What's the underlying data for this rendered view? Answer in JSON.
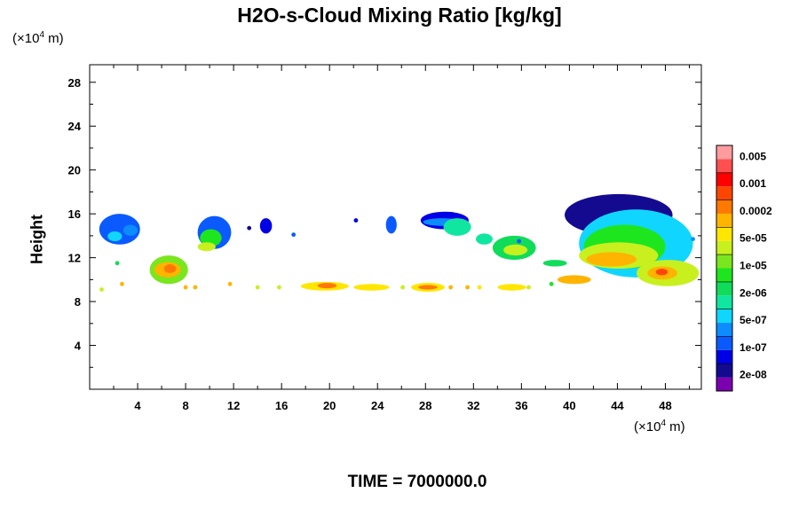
{
  "chart_data": {
    "type": "heatmap",
    "title": "H2O-s-Cloud Mixing Ratio [kg/kg]",
    "ylabel": "Height",
    "x_unit_prefix": "(×10",
    "x_unit_exp": "4",
    "x_unit_suffix": " m)",
    "y_unit_prefix": "(×10",
    "y_unit_exp": "4",
    "y_unit_suffix": " m)",
    "time_label": "TIME = 7000000.0",
    "xlim": [
      0,
      51
    ],
    "ylim": [
      0,
      29.6
    ],
    "xticks": [
      4,
      8,
      12,
      16,
      20,
      24,
      28,
      32,
      36,
      40,
      44,
      48
    ],
    "yticks": [
      4,
      8,
      12,
      16,
      20,
      24,
      28
    ],
    "grid": false,
    "colorbar": {
      "placement": "right",
      "colors": [
        "#7a00b0",
        "#140a90",
        "#0000e6",
        "#0a5aff",
        "#0c8cff",
        "#10d6ff",
        "#10e6a0",
        "#10dc5a",
        "#1ee61e",
        "#7ae61e",
        "#c8f01e",
        "#ffe600",
        "#ffb400",
        "#ff7800",
        "#ff4600",
        "#ff0000",
        "#ff5050",
        "#ff9ca0"
      ],
      "labels": [
        "2e-08",
        "1e-07",
        "5e-07",
        "2e-06",
        "1e-05",
        "5e-05",
        "0.0002",
        "0.001",
        "0.005"
      ]
    },
    "regions": [
      {
        "x": [
          0.8,
          4.2
        ],
        "y": [
          13.2,
          16.0
        ],
        "level": 3
      },
      {
        "x": [
          1.5,
          2.7
        ],
        "y": [
          13.5,
          14.4
        ],
        "level": 5
      },
      {
        "x": [
          2.8,
          4.0
        ],
        "y": [
          14.0,
          15.0
        ],
        "level": 4
      },
      {
        "x": [
          9.0,
          11.8
        ],
        "y": [
          12.8,
          15.8
        ],
        "level": 3
      },
      {
        "x": [
          9.2,
          11.0
        ],
        "y": [
          13.0,
          14.6
        ],
        "level": 8
      },
      {
        "x": [
          9.0,
          10.5
        ],
        "y": [
          12.6,
          13.4
        ],
        "level": 10
      },
      {
        "x": [
          14.2,
          15.2
        ],
        "y": [
          14.2,
          15.6
        ],
        "level": 2
      },
      {
        "x": [
          24.7,
          25.6
        ],
        "y": [
          14.2,
          15.8
        ],
        "level": 3
      },
      {
        "x": [
          27.6,
          31.6
        ],
        "y": [
          14.6,
          16.2
        ],
        "level": 2
      },
      {
        "x": [
          27.8,
          31.0
        ],
        "y": [
          14.9,
          15.6
        ],
        "level": 4
      },
      {
        "x": [
          29.5,
          31.8
        ],
        "y": [
          14.0,
          15.6
        ],
        "level": 6
      },
      {
        "x": [
          32.2,
          33.6
        ],
        "y": [
          13.2,
          14.2
        ],
        "level": 6
      },
      {
        "x": [
          33.6,
          37.2
        ],
        "y": [
          11.8,
          14.0
        ],
        "level": 7
      },
      {
        "x": [
          34.5,
          36.5
        ],
        "y": [
          12.2,
          13.2
        ],
        "level": 10
      },
      {
        "x": [
          39.6,
          48.6
        ],
        "y": [
          14.0,
          17.8
        ],
        "level": 1
      },
      {
        "x": [
          40.8,
          50.3
        ],
        "y": [
          10.2,
          16.4
        ],
        "level": 5
      },
      {
        "x": [
          41.2,
          48.0
        ],
        "y": [
          11.0,
          15.0
        ],
        "level": 8
      },
      {
        "x": [
          40.8,
          47.4
        ],
        "y": [
          11.0,
          13.4
        ],
        "level": 10
      },
      {
        "x": [
          41.4,
          45.6
        ],
        "y": [
          11.2,
          12.5
        ],
        "level": 12
      },
      {
        "x": [
          45.6,
          50.8
        ],
        "y": [
          9.4,
          11.8
        ],
        "level": 10
      },
      {
        "x": [
          46.5,
          49.0
        ],
        "y": [
          10.0,
          11.2
        ],
        "level": 12
      },
      {
        "x": [
          47.2,
          48.2
        ],
        "y": [
          10.4,
          11.0
        ],
        "level": 14
      },
      {
        "x": [
          39.0,
          41.8
        ],
        "y": [
          9.6,
          10.4
        ],
        "level": 12
      },
      {
        "x": [
          5.0,
          8.2
        ],
        "y": [
          9.6,
          12.2
        ],
        "level": 9
      },
      {
        "x": [
          5.4,
          7.6
        ],
        "y": [
          10.2,
          11.6
        ],
        "level": 12
      },
      {
        "x": [
          6.2,
          7.2
        ],
        "y": [
          10.6,
          11.4
        ],
        "level": 13
      },
      {
        "x": [
          17.6,
          21.6
        ],
        "y": [
          9.0,
          9.8
        ],
        "level": 11
      },
      {
        "x": [
          19.0,
          20.6
        ],
        "y": [
          9.2,
          9.7
        ],
        "level": 13
      },
      {
        "x": [
          22.0,
          25.0
        ],
        "y": [
          9.0,
          9.6
        ],
        "level": 11
      },
      {
        "x": [
          26.8,
          29.6
        ],
        "y": [
          8.9,
          9.7
        ],
        "level": 11
      },
      {
        "x": [
          27.4,
          29.0
        ],
        "y": [
          9.1,
          9.5
        ],
        "level": 13
      },
      {
        "x": [
          34.0,
          36.4
        ],
        "y": [
          9.0,
          9.6
        ],
        "level": 11
      },
      {
        "x": [
          37.8,
          39.8
        ],
        "y": [
          11.2,
          11.8
        ],
        "level": 7
      }
    ],
    "specks": [
      {
        "x": 1.0,
        "y": 9.1,
        "level": 10
      },
      {
        "x": 2.3,
        "y": 11.5,
        "level": 7
      },
      {
        "x": 2.7,
        "y": 9.6,
        "level": 12
      },
      {
        "x": 8.0,
        "y": 9.3,
        "level": 12
      },
      {
        "x": 8.8,
        "y": 9.3,
        "level": 12
      },
      {
        "x": 11.7,
        "y": 9.6,
        "level": 12
      },
      {
        "x": 14.0,
        "y": 9.3,
        "level": 10
      },
      {
        "x": 15.8,
        "y": 9.3,
        "level": 10
      },
      {
        "x": 13.3,
        "y": 14.7,
        "level": 1
      },
      {
        "x": 17.0,
        "y": 14.1,
        "level": 3
      },
      {
        "x": 22.2,
        "y": 15.4,
        "level": 2
      },
      {
        "x": 26.1,
        "y": 9.3,
        "level": 10
      },
      {
        "x": 30.1,
        "y": 9.3,
        "level": 12
      },
      {
        "x": 31.5,
        "y": 9.3,
        "level": 12
      },
      {
        "x": 32.5,
        "y": 9.3,
        "level": 11
      },
      {
        "x": 35.8,
        "y": 13.5,
        "level": 3
      },
      {
        "x": 36.6,
        "y": 9.3,
        "level": 10
      },
      {
        "x": 38.5,
        "y": 9.6,
        "level": 8
      },
      {
        "x": 50.3,
        "y": 13.7,
        "level": 4
      }
    ]
  }
}
